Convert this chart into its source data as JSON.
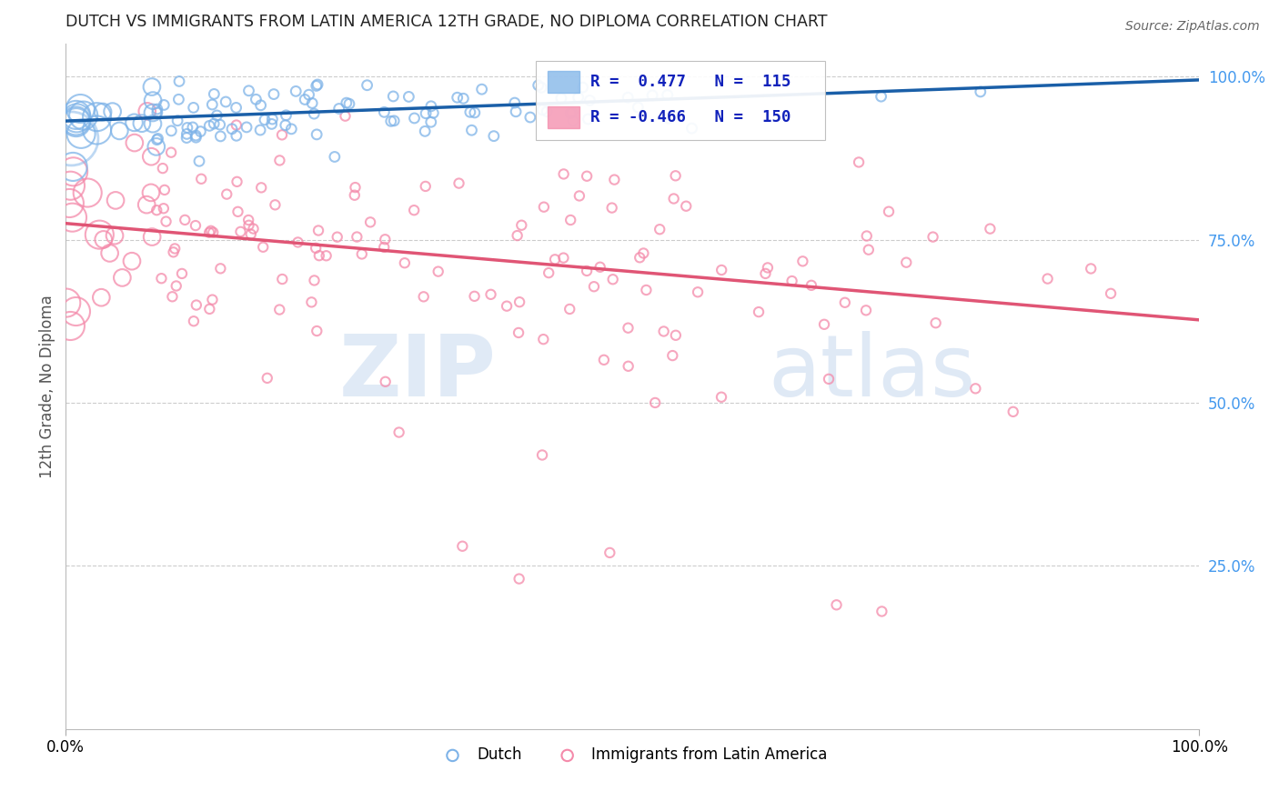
{
  "title": "DUTCH VS IMMIGRANTS FROM LATIN AMERICA 12TH GRADE, NO DIPLOMA CORRELATION CHART",
  "source": "Source: ZipAtlas.com",
  "ylabel": "12th Grade, No Diploma",
  "xlabel": "",
  "xlim": [
    0,
    1
  ],
  "ylim": [
    0,
    1.05
  ],
  "xtick_labels": [
    "0.0%",
    "100.0%"
  ],
  "ytick_labels_right": [
    "100.0%",
    "75.0%",
    "50.0%",
    "25.0%"
  ],
  "ytick_vals_right": [
    1.0,
    0.75,
    0.5,
    0.25
  ],
  "legend_R_dutch": "R =  0.477",
  "legend_N_dutch": "N =  115",
  "legend_R_latin": "R = -0.466",
  "legend_N_latin": "N =  150",
  "dutch_color": "#7eb3e8",
  "latin_color": "#f48aaa",
  "dutch_line_color": "#1a5fa8",
  "latin_line_color": "#e05575",
  "watermark_zip": "ZIP",
  "watermark_atlas": "atlas",
  "background_color": "#ffffff",
  "grid_color": "#cccccc",
  "title_color": "#222222",
  "right_tick_color": "#4499ee",
  "dutch_line_y0": 0.932,
  "dutch_line_y1": 0.995,
  "latin_line_y0": 0.775,
  "latin_line_y1": 0.627
}
